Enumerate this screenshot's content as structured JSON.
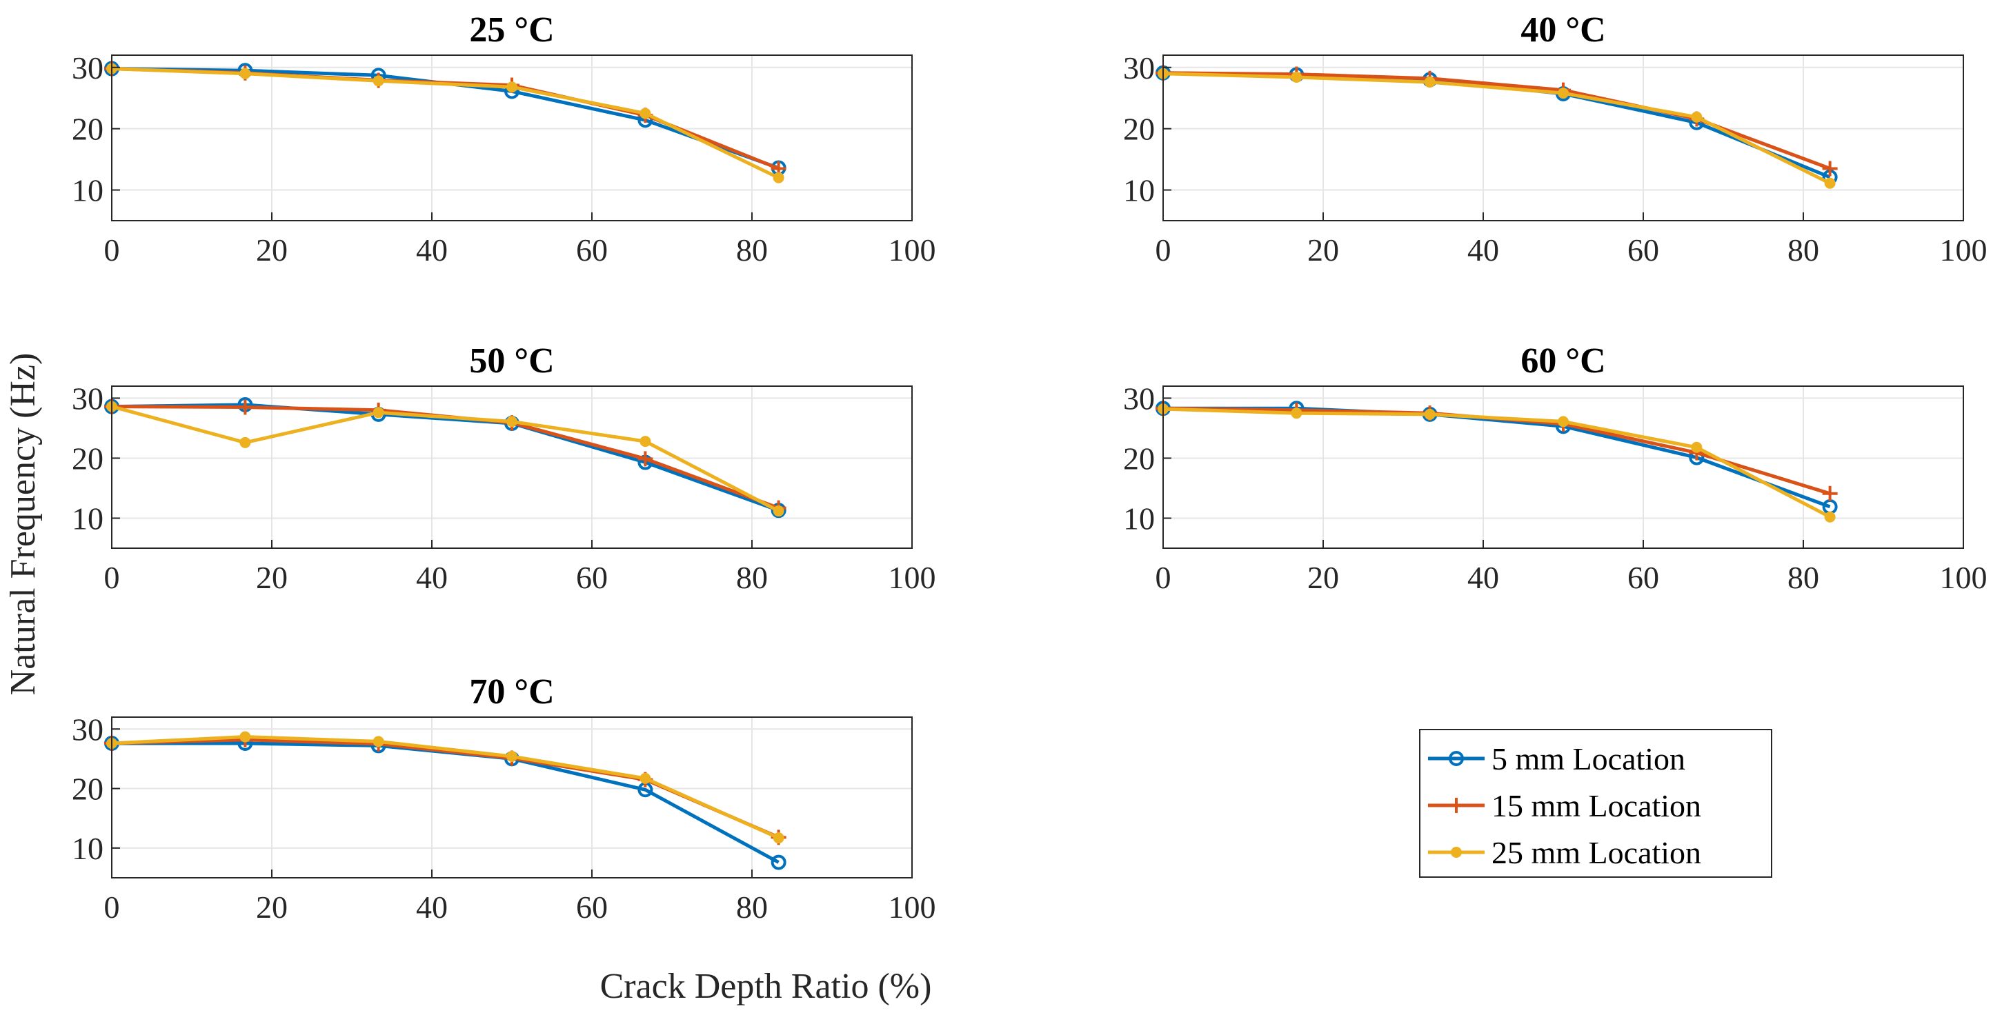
{
  "figure": {
    "ylabel": "Natural Frequency (Hz)",
    "xlabel": "Crack Depth Ratio (%)"
  },
  "legend": {
    "entries": [
      "5 mm Location",
      "15 mm Location",
      "25 mm Location"
    ]
  },
  "colors": {
    "series": [
      "#0072BD",
      "#D95319",
      "#EDB120"
    ],
    "grid": "#e6e6e6",
    "axis": "#262626"
  },
  "chart_data": [
    {
      "type": "line",
      "title": "25 °C",
      "x": [
        0,
        16.67,
        33.33,
        50,
        66.67,
        83.33
      ],
      "xlim": [
        0,
        100
      ],
      "ylim": [
        5,
        32
      ],
      "xticks": [
        0,
        20,
        40,
        60,
        80,
        100
      ],
      "yticks": [
        10,
        20,
        30
      ],
      "grid": true,
      "series": [
        {
          "name": "5 mm Location",
          "marker": "circle",
          "values": [
            29.8,
            29.5,
            28.7,
            26.1,
            21.4,
            13.6
          ]
        },
        {
          "name": "15 mm Location",
          "marker": "plus",
          "values": [
            29.8,
            29.1,
            27.9,
            27.1,
            22.2,
            13.5
          ]
        },
        {
          "name": "25 mm Location",
          "marker": "dot",
          "values": [
            29.8,
            29.0,
            27.8,
            26.8,
            22.5,
            12.0
          ]
        }
      ]
    },
    {
      "type": "line",
      "title": "40 °C",
      "x": [
        0,
        16.67,
        33.33,
        50,
        66.67,
        83.33
      ],
      "xlim": [
        0,
        100
      ],
      "ylim": [
        5,
        32
      ],
      "xticks": [
        0,
        20,
        40,
        60,
        80,
        100
      ],
      "yticks": [
        10,
        20,
        30
      ],
      "grid": true,
      "series": [
        {
          "name": "5 mm Location",
          "marker": "circle",
          "values": [
            29.1,
            28.8,
            28.0,
            25.7,
            21.0,
            12.1
          ]
        },
        {
          "name": "15 mm Location",
          "marker": "plus",
          "values": [
            29.1,
            28.9,
            28.2,
            26.3,
            21.6,
            13.5
          ]
        },
        {
          "name": "25 mm Location",
          "marker": "dot",
          "values": [
            29.0,
            28.4,
            27.6,
            25.8,
            21.9,
            11.1
          ]
        }
      ]
    },
    {
      "type": "line",
      "title": "50 °C",
      "x": [
        0,
        16.67,
        33.33,
        50,
        66.67,
        83.33
      ],
      "xlim": [
        0,
        100
      ],
      "ylim": [
        5,
        32
      ],
      "xticks": [
        0,
        20,
        40,
        60,
        80,
        100
      ],
      "yticks": [
        10,
        20,
        30
      ],
      "grid": true,
      "series": [
        {
          "name": "5 mm Location",
          "marker": "circle",
          "values": [
            28.6,
            28.9,
            27.3,
            25.8,
            19.3,
            11.3
          ]
        },
        {
          "name": "15 mm Location",
          "marker": "plus",
          "values": [
            28.6,
            28.5,
            28.0,
            25.9,
            19.9,
            11.7
          ]
        },
        {
          "name": "25 mm Location",
          "marker": "dot",
          "values": [
            28.6,
            22.6,
            27.6,
            26.1,
            22.8,
            11.2
          ]
        }
      ]
    },
    {
      "type": "line",
      "title": "60 °C",
      "x": [
        0,
        16.67,
        33.33,
        50,
        66.67,
        83.33
      ],
      "xlim": [
        0,
        100
      ],
      "ylim": [
        5,
        32
      ],
      "xticks": [
        0,
        20,
        40,
        60,
        80,
        100
      ],
      "yticks": [
        10,
        20,
        30
      ],
      "grid": true,
      "series": [
        {
          "name": "5 mm Location",
          "marker": "circle",
          "values": [
            28.3,
            28.3,
            27.3,
            25.3,
            20.1,
            11.9
          ]
        },
        {
          "name": "15 mm Location",
          "marker": "plus",
          "values": [
            28.3,
            28.0,
            27.5,
            25.7,
            20.9,
            14.1
          ]
        },
        {
          "name": "25 mm Location",
          "marker": "dot",
          "values": [
            28.2,
            27.5,
            27.3,
            26.1,
            21.8,
            10.2
          ]
        }
      ]
    },
    {
      "type": "line",
      "title": "70 °C",
      "x": [
        0,
        16.67,
        33.33,
        50,
        66.67,
        83.33
      ],
      "xlim": [
        0,
        100
      ],
      "ylim": [
        5,
        32
      ],
      "xticks": [
        0,
        20,
        40,
        60,
        80,
        100
      ],
      "yticks": [
        10,
        20,
        30
      ],
      "grid": true,
      "series": [
        {
          "name": "5 mm Location",
          "marker": "circle",
          "values": [
            27.6,
            27.6,
            27.2,
            25.0,
            19.8,
            7.6
          ]
        },
        {
          "name": "15 mm Location",
          "marker": "plus",
          "values": [
            27.6,
            28.2,
            27.5,
            25.1,
            21.5,
            11.8
          ]
        },
        {
          "name": "25 mm Location",
          "marker": "dot",
          "values": [
            27.6,
            28.7,
            27.9,
            25.4,
            21.7,
            11.7
          ]
        }
      ]
    }
  ]
}
